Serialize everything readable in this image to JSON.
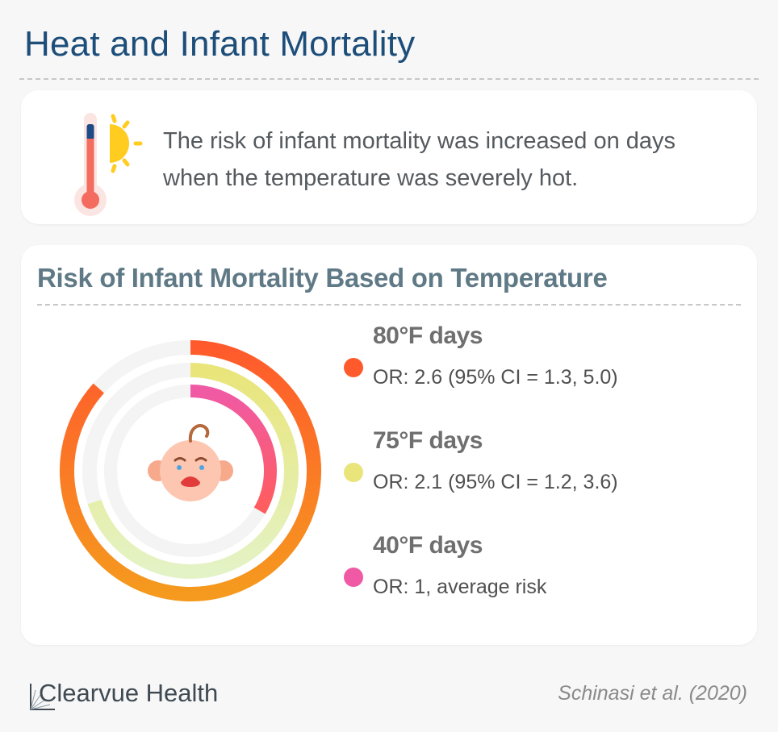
{
  "header": {
    "title": "Heat and Infant Mortality"
  },
  "intro": {
    "text": "The risk of infant mortality was increased on days when the temperature was severely hot.",
    "icon": "thermometer-sun-icon"
  },
  "chart_data": {
    "type": "radial-bar",
    "title": "Risk of Infant Mortality Based on Temperature",
    "center_icon": "crying-baby-icon",
    "max_value": 3.0,
    "series": [
      {
        "name": "80°F days",
        "value": 2.6,
        "ci_low": 1.3,
        "ci_high": 5.0,
        "label": "OR: 2.6 (95% CI = 1.3, 5.0)",
        "color": "#ff5a2c",
        "color_end": "#f59a1e"
      },
      {
        "name": "75°F days",
        "value": 2.1,
        "ci_low": 1.2,
        "ci_high": 3.6,
        "label": "OR: 2.1 (95% CI = 1.2, 3.6)",
        "color": "#e9e57a",
        "color_end": "#e4f3c6"
      },
      {
        "name": "40°F days",
        "value": 1.0,
        "label": "OR: 1, average risk",
        "color": "#f05aa5",
        "color_end": "#ff5d5d"
      }
    ],
    "legend_position": "right"
  },
  "footer": {
    "brand": "Clearvue Health",
    "citation": "Schinasi et al. (2020)"
  }
}
